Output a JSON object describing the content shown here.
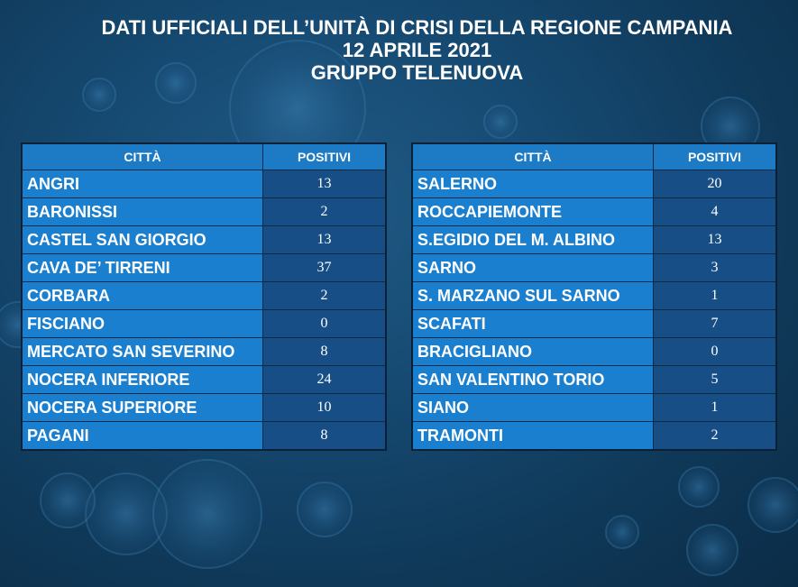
{
  "header": {
    "line1": "DATI UFFICIALI DELL’UNITÀ DI CRISI DELLA REGIONE CAMPANIA",
    "line2": "12 APRILE 2021",
    "line3": "GRUPPO TELENUOVA"
  },
  "tables": [
    {
      "col_city": "CITTÀ",
      "col_positive": "POSITIVI",
      "rows": [
        {
          "city": "ANGRI",
          "positive": "13"
        },
        {
          "city": "BARONISSI",
          "positive": "2"
        },
        {
          "city": "CASTEL SAN GIORGIO",
          "positive": "13"
        },
        {
          "city": "CAVA DE’ TIRRENI",
          "positive": "37"
        },
        {
          "city": "CORBARA",
          "positive": "2"
        },
        {
          "city": "FISCIANO",
          "positive": "0"
        },
        {
          "city": "MERCATO SAN SEVERINO",
          "positive": "8"
        },
        {
          "city": "NOCERA INFERIORE",
          "positive": "24"
        },
        {
          "city": "NOCERA SUPERIORE",
          "positive": "10"
        },
        {
          "city": "PAGANI",
          "positive": "8"
        }
      ]
    },
    {
      "col_city": "CITTÀ",
      "col_positive": "POSITIVI",
      "rows": [
        {
          "city": "SALERNO",
          "positive": "20"
        },
        {
          "city": "ROCCAPIEMONTE",
          "positive": "4"
        },
        {
          "city": "S.EGIDIO DEL M. ALBINO",
          "positive": "13"
        },
        {
          "city": "SARNO",
          "positive": "3"
        },
        {
          "city": "S. MARZANO SUL SARNO",
          "positive": "1"
        },
        {
          "city": "SCAFATI",
          "positive": "7"
        },
        {
          "city": "BRACIGLIANO",
          "positive": "0"
        },
        {
          "city": "SAN VALENTINO TORIO",
          "positive": "5"
        },
        {
          "city": "SIANO",
          "positive": "1"
        },
        {
          "city": "TRAMONTI",
          "positive": "2"
        }
      ]
    }
  ]
}
